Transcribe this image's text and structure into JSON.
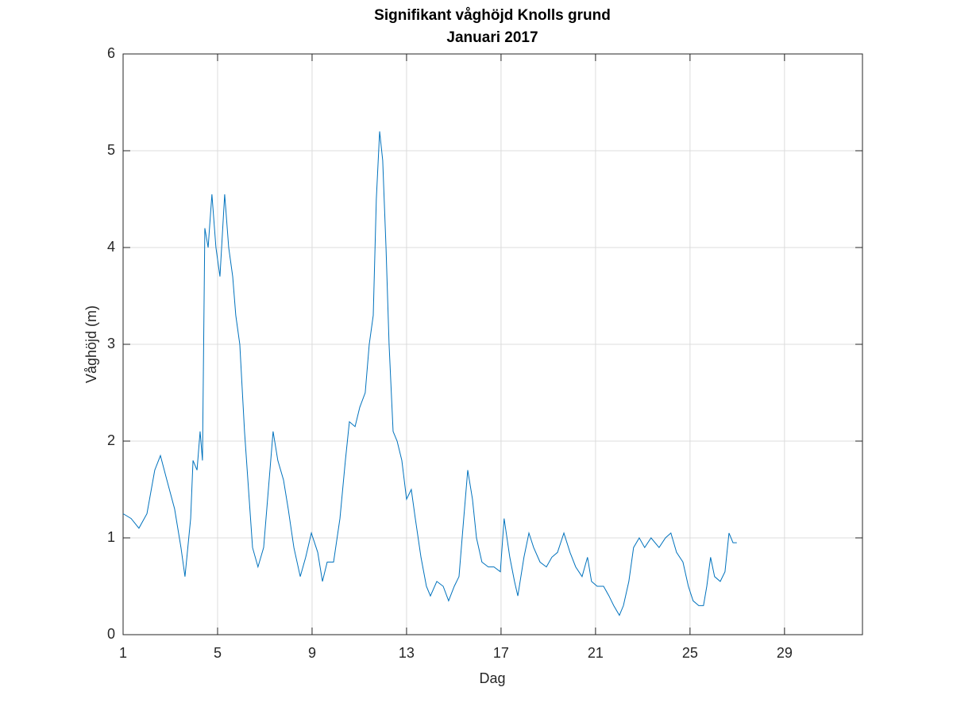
{
  "chart_data": {
    "type": "line",
    "title": "Signifikant våghöjd Knolls grund",
    "subtitle": "Januari 2017",
    "xlabel": "Dag",
    "ylabel": "Våghöjd (m)",
    "color": "#0072bd",
    "grid": true,
    "xlim": [
      1,
      32.3
    ],
    "xticks": [
      1,
      5,
      9,
      13,
      17,
      21,
      25,
      29
    ],
    "ylim": [
      0,
      6
    ],
    "yticks": [
      0,
      1,
      2,
      3,
      4,
      5,
      6
    ],
    "x": [
      1.0,
      1.34,
      1.67,
      2.01,
      2.34,
      2.58,
      2.85,
      3.18,
      3.45,
      3.62,
      3.86,
      3.96,
      4.13,
      4.26,
      4.36,
      4.46,
      4.6,
      4.76,
      4.93,
      5.1,
      5.3,
      5.47,
      5.64,
      5.77,
      5.94,
      6.14,
      6.31,
      6.48,
      6.71,
      6.95,
      7.15,
      7.35,
      7.55,
      7.79,
      7.99,
      8.23,
      8.5,
      8.73,
      8.97,
      9.24,
      9.44,
      9.64,
      9.91,
      10.18,
      10.41,
      10.58,
      10.82,
      11.02,
      11.25,
      11.42,
      11.59,
      11.72,
      11.86,
      11.99,
      12.13,
      12.26,
      12.43,
      12.6,
      12.8,
      13.0,
      13.2,
      13.37,
      13.61,
      13.84,
      14.01,
      14.28,
      14.55,
      14.78,
      15.02,
      15.22,
      15.42,
      15.59,
      15.79,
      15.96,
      16.19,
      16.46,
      16.7,
      16.97,
      17.13,
      17.37,
      17.57,
      17.71,
      17.97,
      18.18,
      18.38,
      18.65,
      18.92,
      19.15,
      19.39,
      19.66,
      19.92,
      20.16,
      20.43,
      20.66,
      20.83,
      21.07,
      21.34,
      21.57,
      21.77,
      22.01,
      22.18,
      22.41,
      22.61,
      22.85,
      23.08,
      23.35,
      23.69,
      23.96,
      24.19,
      24.43,
      24.7,
      24.93,
      25.13,
      25.37,
      25.57,
      25.71,
      25.87,
      26.04,
      26.28,
      26.48,
      26.65,
      26.82,
      26.98
    ],
    "values": [
      1.25,
      1.2,
      1.1,
      1.25,
      1.7,
      1.85,
      1.6,
      1.3,
      0.9,
      0.6,
      1.2,
      1.8,
      1.7,
      2.1,
      1.8,
      4.2,
      4.0,
      4.55,
      4.0,
      3.7,
      4.55,
      4.0,
      3.7,
      3.3,
      3.0,
      2.1,
      1.5,
      0.9,
      0.7,
      0.9,
      1.5,
      2.1,
      1.8,
      1.6,
      1.3,
      0.9,
      0.6,
      0.8,
      1.05,
      0.85,
      0.55,
      0.75,
      0.75,
      1.2,
      1.8,
      2.2,
      2.15,
      2.35,
      2.5,
      3.0,
      3.3,
      4.5,
      5.2,
      4.9,
      4.0,
      3.0,
      2.1,
      2.0,
      1.8,
      1.4,
      1.5,
      1.2,
      0.8,
      0.5,
      0.4,
      0.55,
      0.5,
      0.35,
      0.5,
      0.6,
      1.2,
      1.7,
      1.4,
      1.0,
      0.75,
      0.7,
      0.7,
      0.65,
      1.2,
      0.8,
      0.55,
      0.4,
      0.8,
      1.05,
      0.9,
      0.75,
      0.7,
      0.8,
      0.85,
      1.05,
      0.85,
      0.7,
      0.6,
      0.8,
      0.55,
      0.5,
      0.5,
      0.4,
      0.3,
      0.2,
      0.3,
      0.55,
      0.9,
      1.0,
      0.9,
      1.0,
      0.9,
      1.0,
      1.05,
      0.85,
      0.75,
      0.5,
      0.35,
      0.3,
      0.3,
      0.5,
      0.8,
      0.6,
      0.55,
      0.65,
      1.05,
      0.95,
      0.95
    ]
  }
}
